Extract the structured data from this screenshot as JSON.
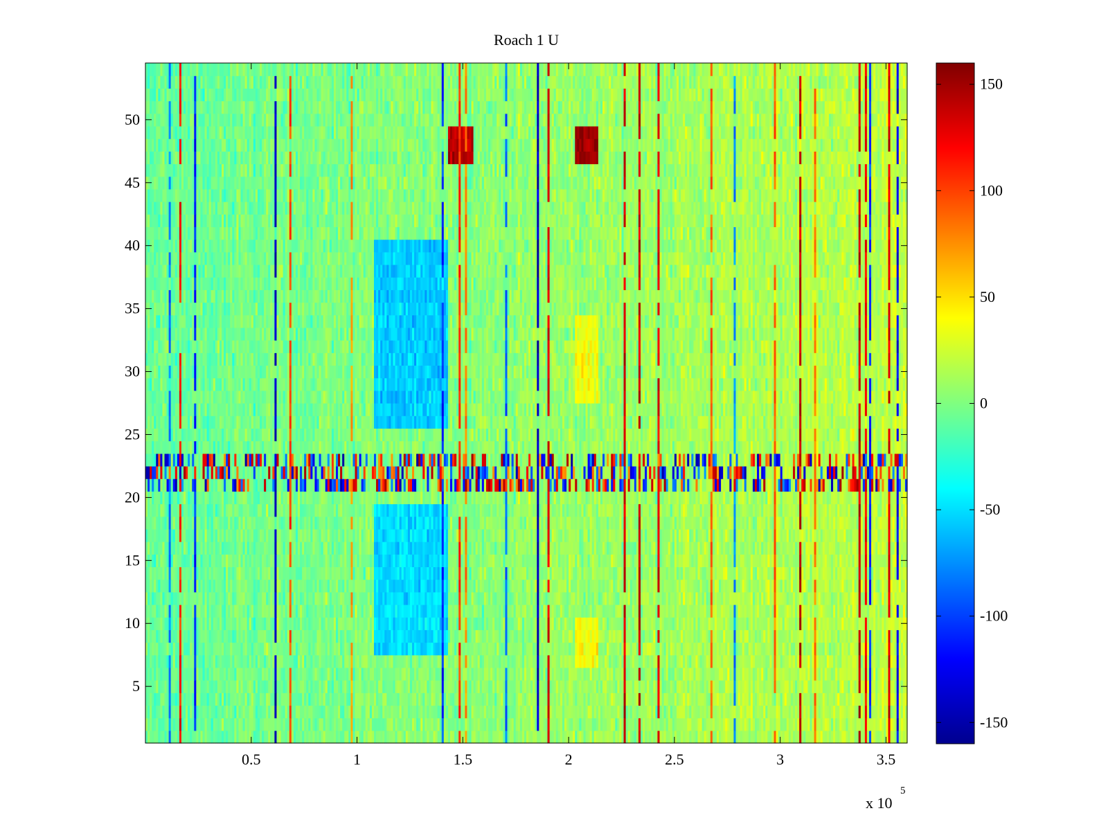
{
  "chart_data": {
    "type": "heatmap",
    "title": "Roach 1 U",
    "xlabel": "",
    "ylabel": "",
    "x_exponent_label": "x 10",
    "x_exponent_power": "5",
    "xlim": [
      0,
      360000
    ],
    "ylim": [
      0.5,
      54.5
    ],
    "rows": 54,
    "x_ticks": [
      {
        "value": 50000,
        "label": "0.5"
      },
      {
        "value": 100000,
        "label": "1"
      },
      {
        "value": 150000,
        "label": "1.5"
      },
      {
        "value": 200000,
        "label": "2"
      },
      {
        "value": 250000,
        "label": "2.5"
      },
      {
        "value": 300000,
        "label": "3"
      },
      {
        "value": 350000,
        "label": "3.5"
      }
    ],
    "y_ticks": [
      {
        "value": 5,
        "label": "5"
      },
      {
        "value": 10,
        "label": "10"
      },
      {
        "value": 15,
        "label": "15"
      },
      {
        "value": 20,
        "label": "20"
      },
      {
        "value": 25,
        "label": "25"
      },
      {
        "value": 30,
        "label": "30"
      },
      {
        "value": 35,
        "label": "35"
      },
      {
        "value": 40,
        "label": "40"
      },
      {
        "value": 45,
        "label": "45"
      },
      {
        "value": 50,
        "label": "50"
      }
    ],
    "colorbar": {
      "colormap": "jet",
      "clim": [
        -160,
        160
      ],
      "ticks": [
        {
          "value": 150,
          "label": "150"
        },
        {
          "value": 100,
          "label": "100"
        },
        {
          "value": 50,
          "label": "50"
        },
        {
          "value": 0,
          "label": "0"
        },
        {
          "value": -50,
          "label": "-50"
        },
        {
          "value": -100,
          "label": "-100"
        },
        {
          "value": -150,
          "label": "-150"
        }
      ]
    },
    "regions": [
      {
        "x_range": [
          108000,
          143000
        ],
        "y_range": [
          26,
          40
        ],
        "value": -55
      },
      {
        "x_range": [
          108000,
          143000
        ],
        "y_range": [
          8,
          19
        ],
        "value": -50
      },
      {
        "x_range": [
          143000,
          155000
        ],
        "y_range": [
          47,
          49
        ],
        "value": 145
      },
      {
        "x_range": [
          203000,
          214000
        ],
        "y_range": [
          47,
          49
        ],
        "value": 150
      },
      {
        "x_range": [
          203000,
          214000
        ],
        "y_range": [
          7,
          10
        ],
        "value": 40
      },
      {
        "x_range": [
          203000,
          214000
        ],
        "y_range": [
          28,
          34
        ],
        "value": 35
      },
      {
        "x_range": [
          0,
          360000
        ],
        "y_range": [
          21,
          23
        ],
        "value": "striped"
      }
    ]
  }
}
